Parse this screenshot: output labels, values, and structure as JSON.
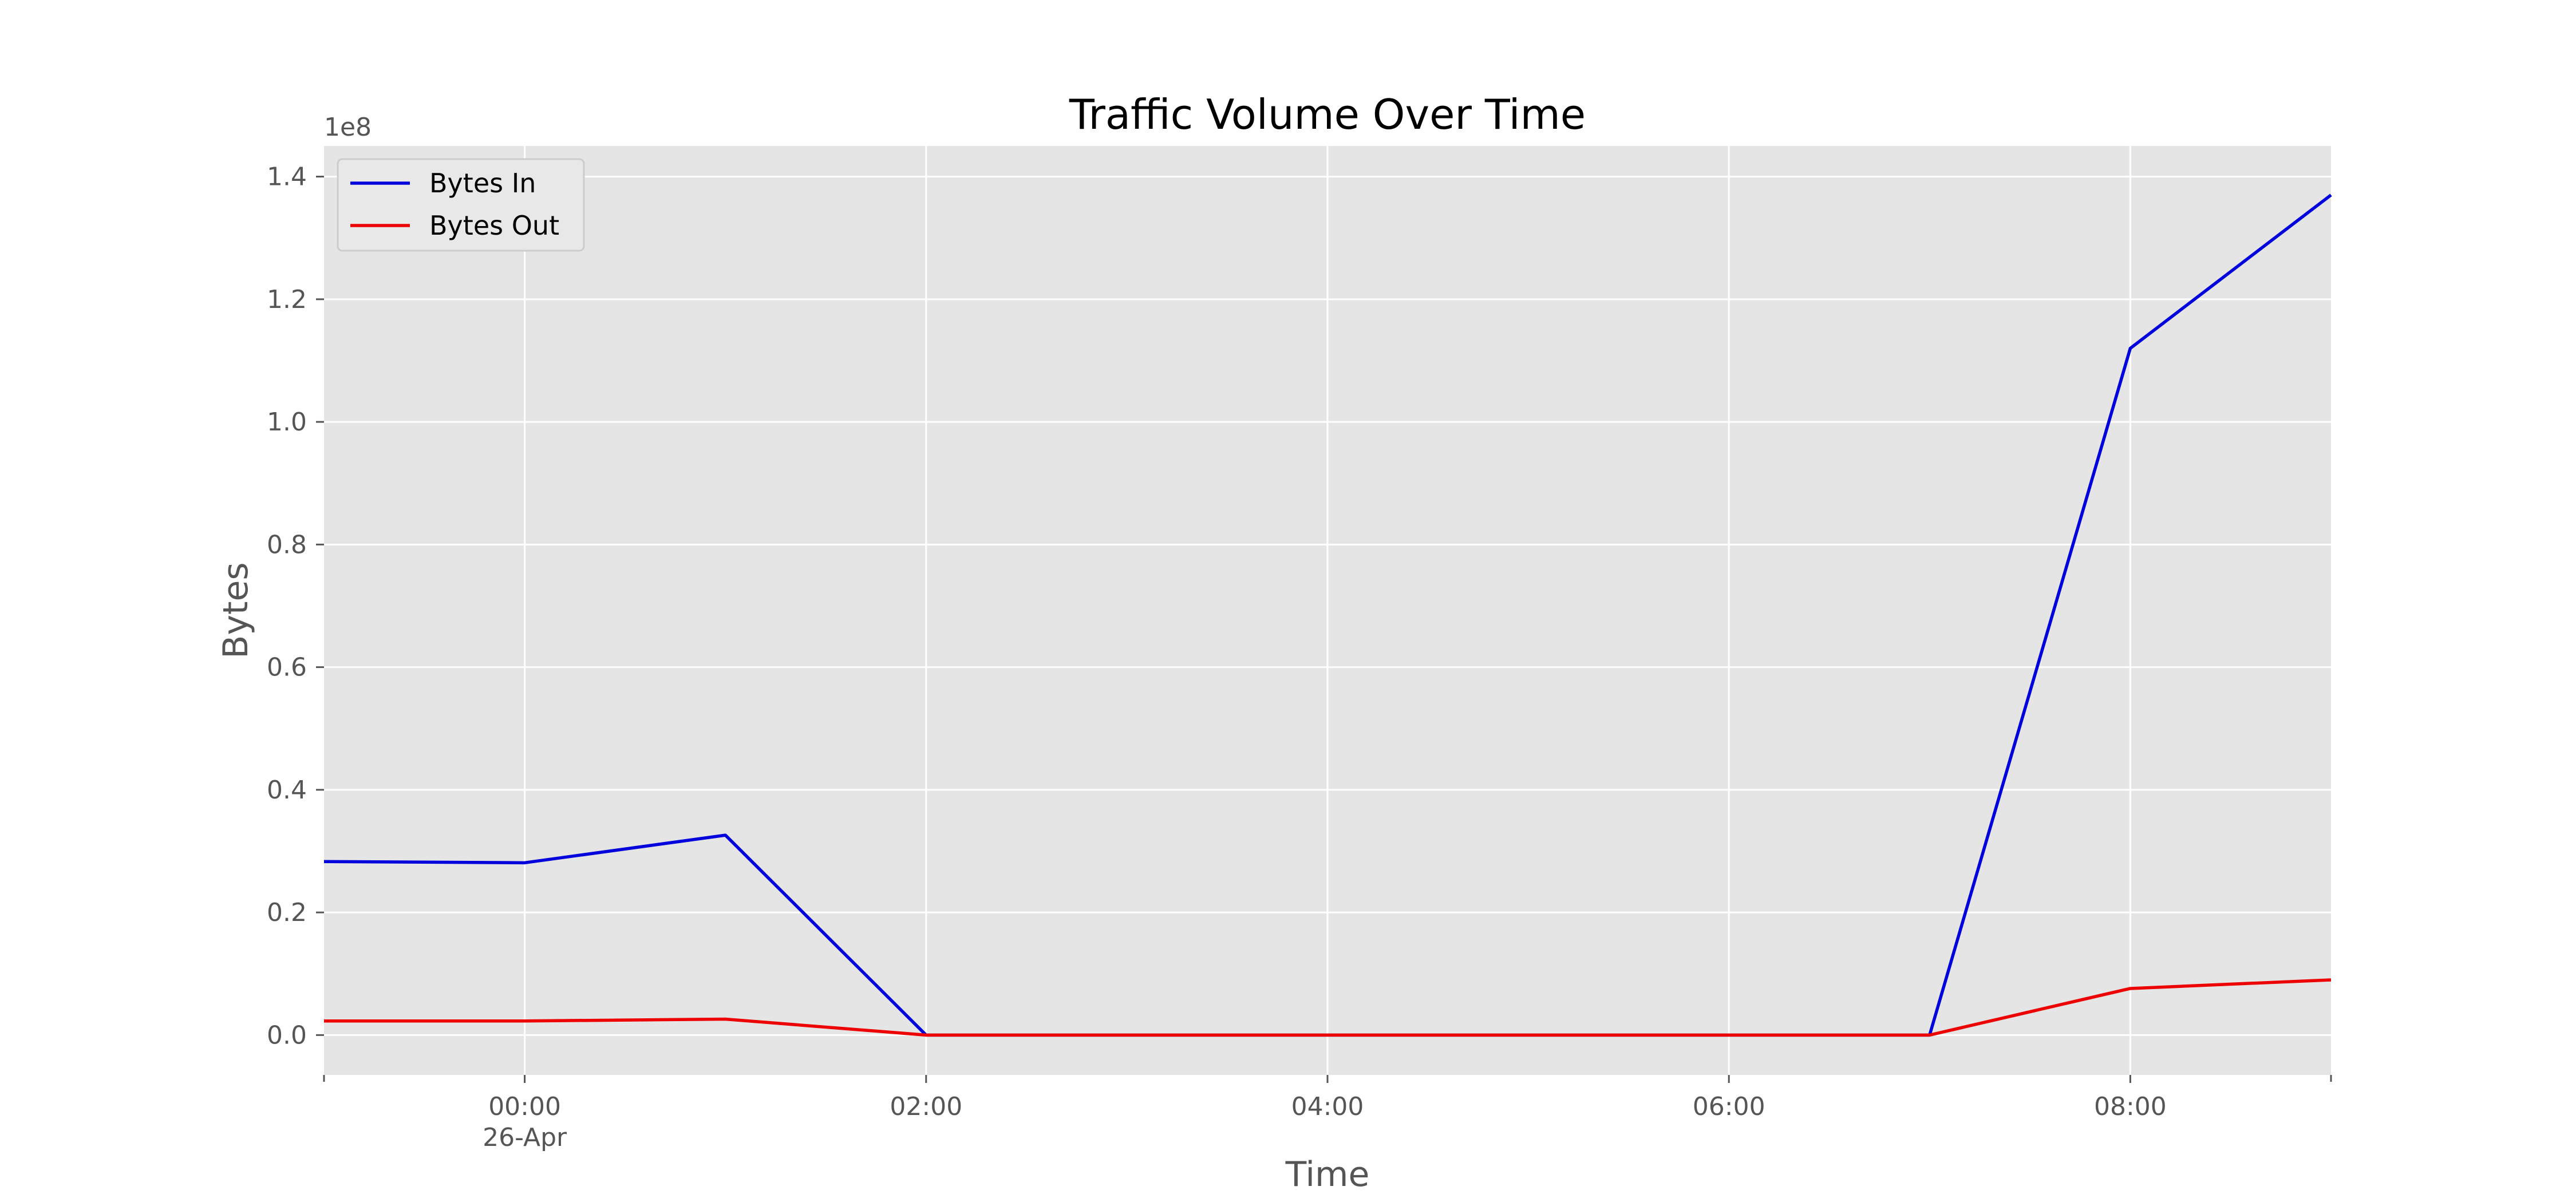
{
  "chart_data": {
    "type": "line",
    "title": "Traffic Volume Over Time",
    "xlabel": "Time",
    "ylabel": "Bytes",
    "y_offset_label": "1e8",
    "x": [
      "2023-04-25 23:00",
      "2023-04-26 00:00",
      "2023-04-26 01:00",
      "2023-04-26 02:00",
      "2023-04-26 03:00",
      "2023-04-26 04:00",
      "2023-04-26 05:00",
      "2023-04-26 06:00",
      "2023-04-26 07:00",
      "2023-04-26 08:00",
      "2023-04-26 09:00"
    ],
    "x_ticks": [
      {
        "at": "2023-04-26 00:00",
        "label": "00:00",
        "sublabel": "26-Apr"
      },
      {
        "at": "2023-04-26 02:00",
        "label": "02:00",
        "sublabel": ""
      },
      {
        "at": "2023-04-26 04:00",
        "label": "04:00",
        "sublabel": ""
      },
      {
        "at": "2023-04-26 06:00",
        "label": "06:00",
        "sublabel": ""
      },
      {
        "at": "2023-04-26 08:00",
        "label": "08:00",
        "sublabel": ""
      }
    ],
    "xlim": [
      "2023-04-25 23:00",
      "2023-04-26 09:00"
    ],
    "ylim": [
      -6500000,
      145000000
    ],
    "y_ticks": [
      0,
      20000000,
      40000000,
      60000000,
      80000000,
      100000000,
      120000000,
      140000000
    ],
    "y_tick_labels": [
      "0.0",
      "0.2",
      "0.4",
      "0.6",
      "0.8",
      "1.0",
      "1.2",
      "1.4"
    ],
    "grid": true,
    "legend_position": "top-left",
    "series": [
      {
        "name": "Bytes In",
        "color": "#0000dd",
        "values": [
          28300000,
          28100000,
          32600000,
          0,
          0,
          0,
          0,
          0,
          0,
          112000000,
          137000000
        ]
      },
      {
        "name": "Bytes Out",
        "color": "#ee0000",
        "values": [
          2300000,
          2300000,
          2600000,
          0,
          0,
          0,
          0,
          0,
          0,
          7600000,
          9000000
        ]
      }
    ],
    "plot_background": "#e5e5e5",
    "grid_color": "#ffffff"
  }
}
